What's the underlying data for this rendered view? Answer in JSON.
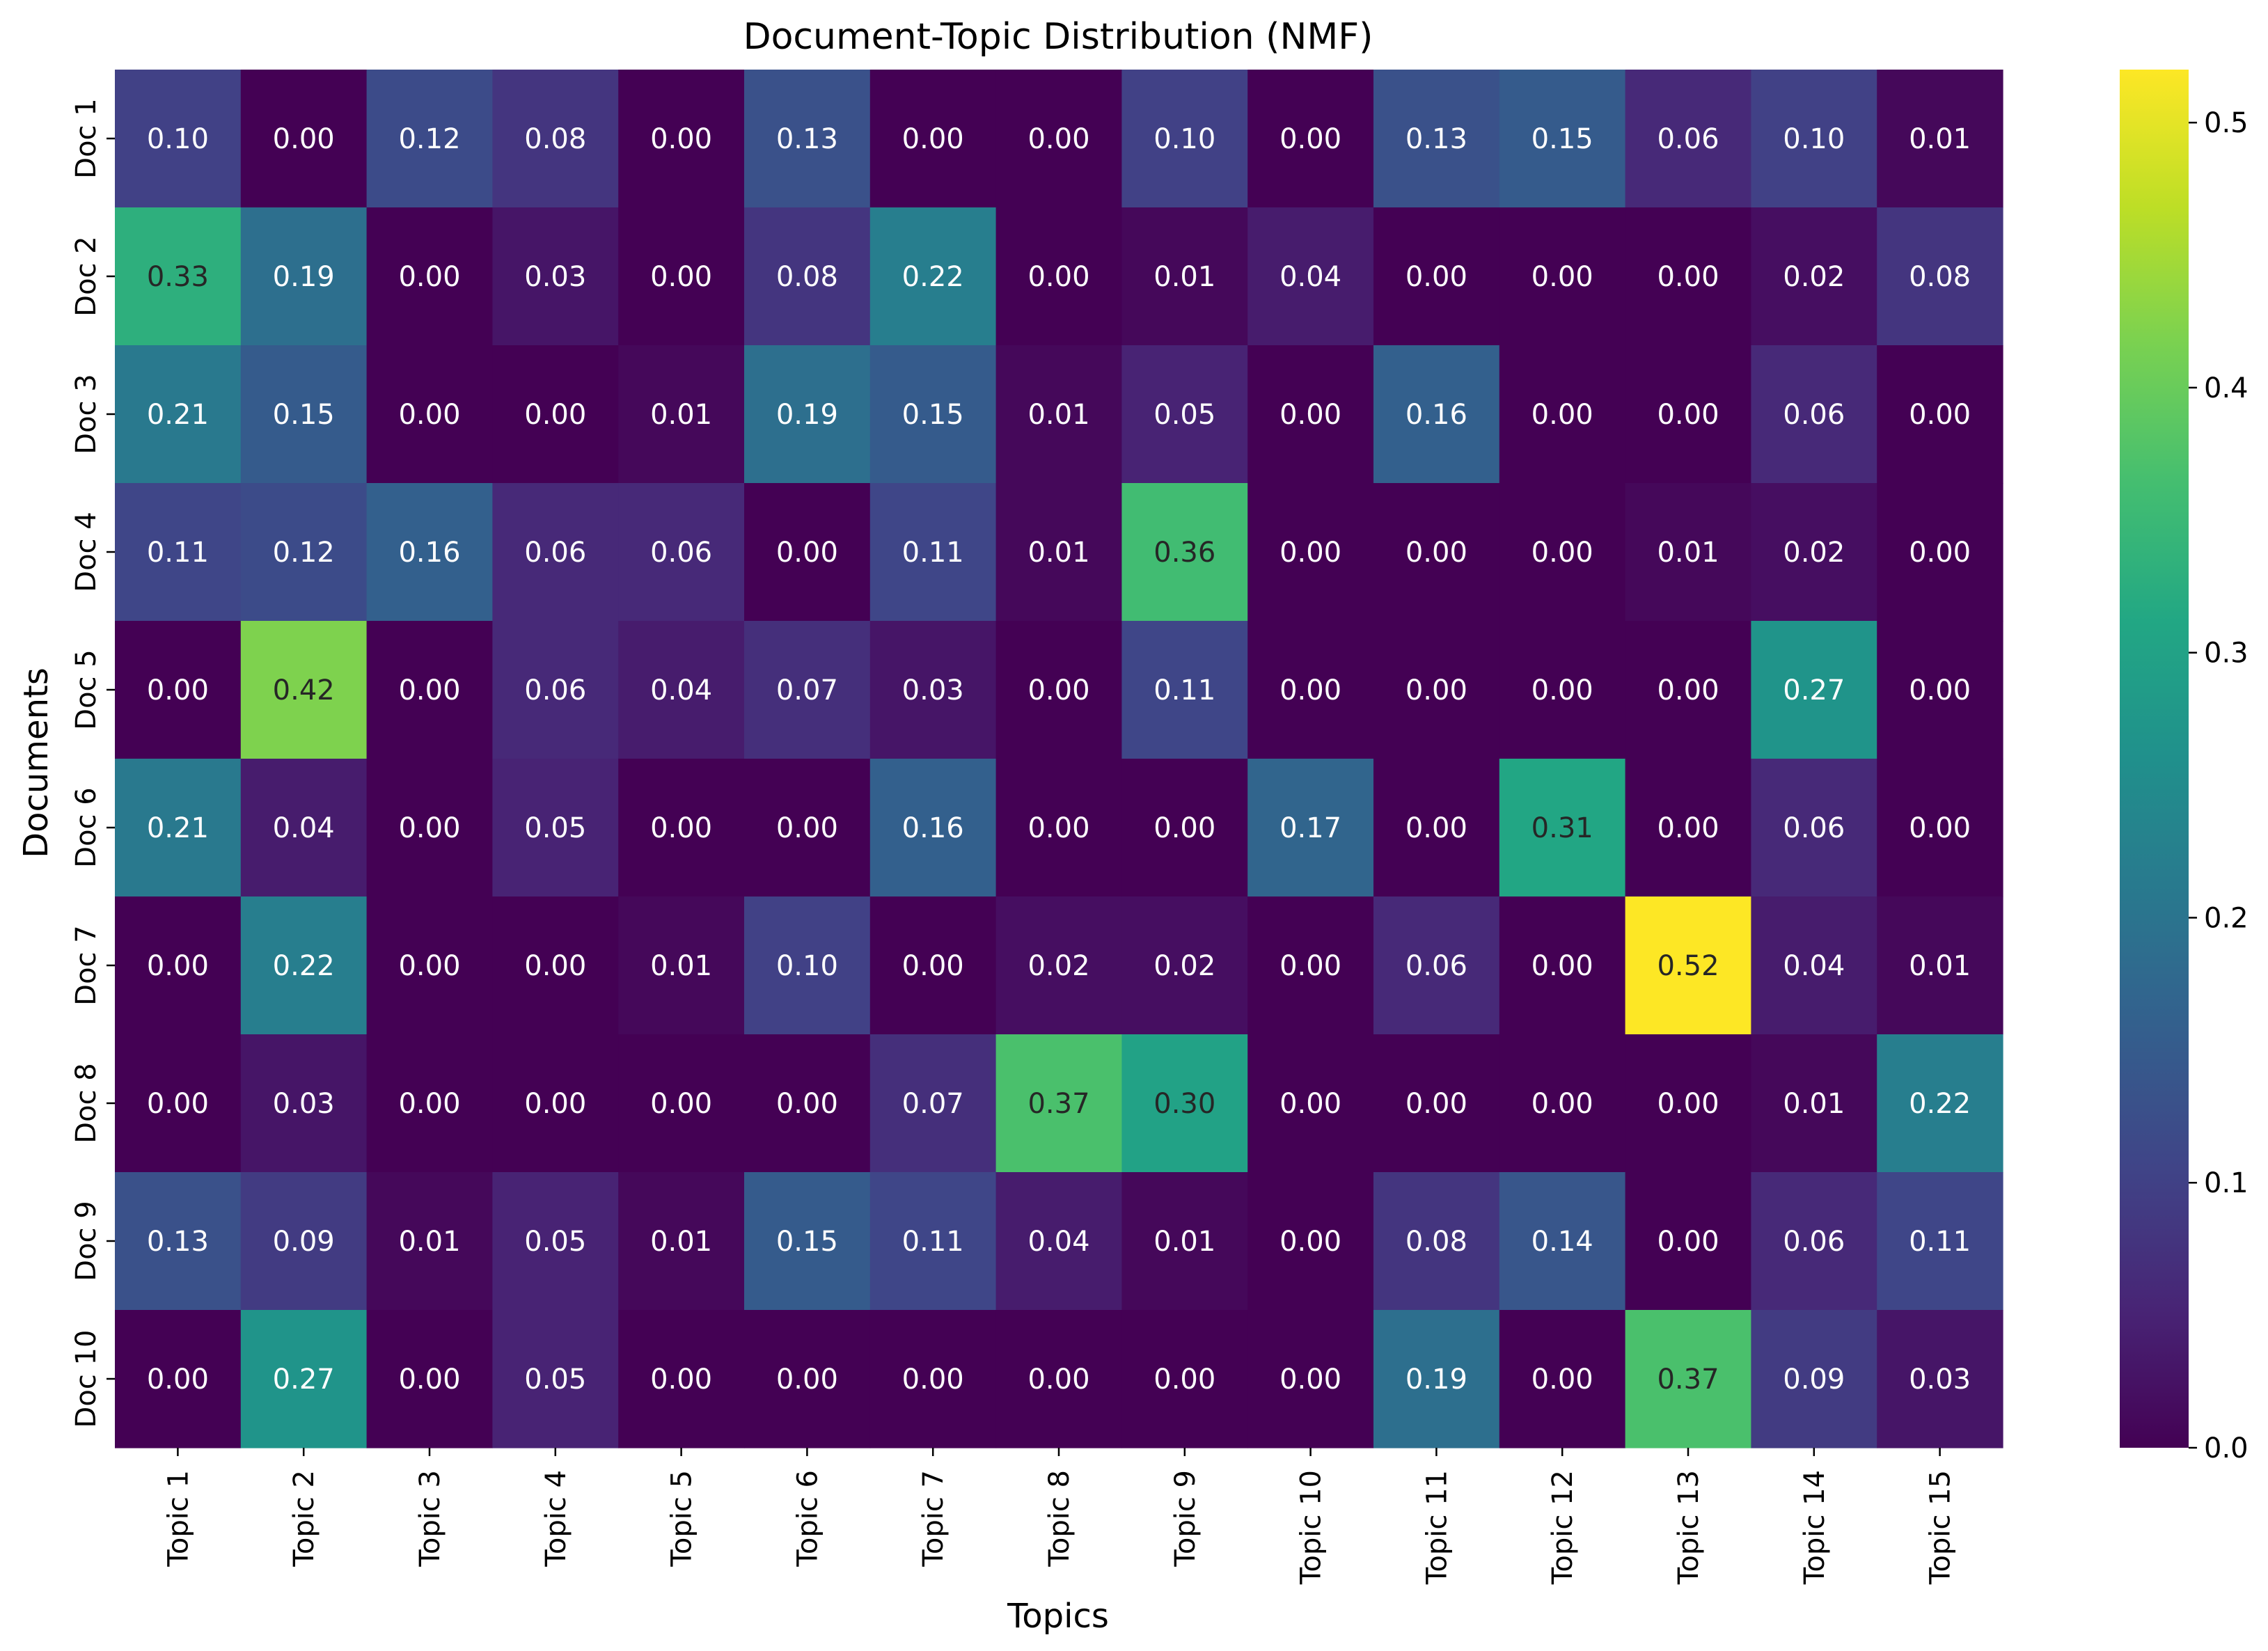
{
  "chart_data": {
    "type": "heatmap",
    "title": "Document-Topic Distribution (NMF)",
    "xlabel": "Topics",
    "ylabel": "Documents",
    "x_categories": [
      "Topic 1",
      "Topic 2",
      "Topic 3",
      "Topic 4",
      "Topic 5",
      "Topic 6",
      "Topic 7",
      "Topic 8",
      "Topic 9",
      "Topic 10",
      "Topic 11",
      "Topic 12",
      "Topic 13",
      "Topic 14",
      "Topic 15"
    ],
    "y_categories": [
      "Doc 1",
      "Doc 2",
      "Doc 3",
      "Doc 4",
      "Doc 5",
      "Doc 6",
      "Doc 7",
      "Doc 8",
      "Doc 9",
      "Doc 10"
    ],
    "values": [
      [
        0.1,
        0.0,
        0.12,
        0.08,
        0.0,
        0.13,
        0.0,
        0.0,
        0.1,
        0.0,
        0.13,
        0.15,
        0.06,
        0.1,
        0.01
      ],
      [
        0.33,
        0.19,
        0.0,
        0.03,
        0.0,
        0.08,
        0.22,
        0.0,
        0.01,
        0.04,
        0.0,
        0.0,
        0.0,
        0.02,
        0.08
      ],
      [
        0.21,
        0.15,
        0.0,
        0.0,
        0.01,
        0.19,
        0.15,
        0.01,
        0.05,
        0.0,
        0.16,
        0.0,
        0.0,
        0.06,
        0.0
      ],
      [
        0.11,
        0.12,
        0.16,
        0.06,
        0.06,
        0.0,
        0.11,
        0.01,
        0.36,
        0.0,
        0.0,
        0.0,
        0.01,
        0.02,
        0.0
      ],
      [
        0.0,
        0.42,
        0.0,
        0.06,
        0.04,
        0.07,
        0.03,
        0.0,
        0.11,
        0.0,
        0.0,
        0.0,
        0.0,
        0.27,
        0.0
      ],
      [
        0.21,
        0.04,
        0.0,
        0.05,
        0.0,
        0.0,
        0.16,
        0.0,
        0.0,
        0.17,
        0.0,
        0.31,
        0.0,
        0.06,
        0.0
      ],
      [
        0.0,
        0.22,
        0.0,
        0.0,
        0.01,
        0.1,
        0.0,
        0.02,
        0.02,
        0.0,
        0.06,
        0.0,
        0.52,
        0.04,
        0.01
      ],
      [
        0.0,
        0.03,
        0.0,
        0.0,
        0.0,
        0.0,
        0.07,
        0.37,
        0.3,
        0.0,
        0.0,
        0.0,
        0.0,
        0.01,
        0.22
      ],
      [
        0.13,
        0.09,
        0.01,
        0.05,
        0.01,
        0.15,
        0.11,
        0.04,
        0.01,
        0.0,
        0.08,
        0.14,
        0.0,
        0.06,
        0.11
      ],
      [
        0.0,
        0.27,
        0.0,
        0.05,
        0.0,
        0.0,
        0.0,
        0.0,
        0.0,
        0.0,
        0.19,
        0.0,
        0.37,
        0.09,
        0.03
      ]
    ],
    "value_range": [
      0.0,
      0.52
    ],
    "colormap": "viridis",
    "colorbar": {
      "ticks": [
        0.0,
        0.1,
        0.2,
        0.3,
        0.4,
        0.5
      ],
      "tick_labels": [
        "0.0",
        "0.1",
        "0.2",
        "0.3",
        "0.4",
        "0.5"
      ]
    },
    "annotation_format": "2 decimals",
    "grid": false,
    "legend": "colorbar at right"
  }
}
